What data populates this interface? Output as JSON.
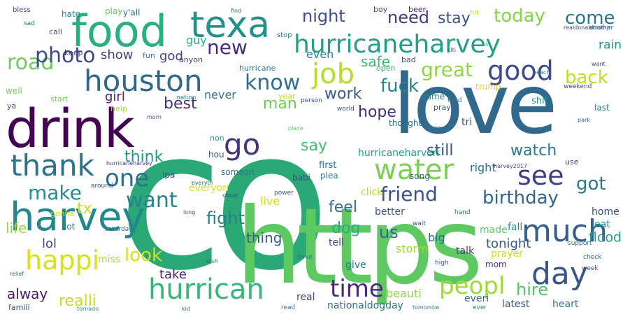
{
  "words": [
    {
      "text": "co",
      "color": "#2aa876"
    },
    {
      "text": "https",
      "color": "#5ec962"
    },
    {
      "text": "love",
      "color": "#31688e"
    },
    {
      "text": "drink",
      "color": "#440154"
    },
    {
      "text": "harvey",
      "color": "#23888e"
    },
    {
      "text": "food",
      "color": "#2ab07f"
    },
    {
      "text": "texa",
      "color": "#21918c"
    },
    {
      "text": "hurricaneharvey",
      "color": "#1fa187"
    },
    {
      "text": "houston",
      "color": "#31688e"
    },
    {
      "text": "water",
      "color": "#7ad151"
    },
    {
      "text": "thank",
      "color": "#2c728e"
    },
    {
      "text": "much",
      "color": "#355f8d"
    },
    {
      "text": "hurrican",
      "color": "#35b779"
    },
    {
      "text": "day",
      "color": "#39568c"
    },
    {
      "text": "job",
      "color": "#b5de2b"
    },
    {
      "text": "time",
      "color": "#482878"
    },
    {
      "text": "happi",
      "color": "#d8e219"
    },
    {
      "text": "good",
      "color": "#3e4a89"
    },
    {
      "text": "know",
      "color": "#2e6e8e"
    },
    {
      "text": "see",
      "color": "#433e85"
    },
    {
      "text": "peopl",
      "color": "#a0da39"
    },
    {
      "text": "friend",
      "color": "#3b528b"
    },
    {
      "text": "one",
      "color": "#2d708e"
    },
    {
      "text": "go",
      "color": "#46327e"
    },
    {
      "text": "want",
      "color": "#26828e"
    },
    {
      "text": "make",
      "color": "#218e8d"
    },
    {
      "text": "new",
      "color": "#472c7a"
    },
    {
      "text": "road",
      "color": "#6ccd5a"
    },
    {
      "text": "photo",
      "color": "#3f4889"
    },
    {
      "text": "night",
      "color": "#3d4e8a"
    },
    {
      "text": "come",
      "color": "#2c738e"
    },
    {
      "text": "today",
      "color": "#86d549"
    },
    {
      "text": "need",
      "color": "#443983"
    },
    {
      "text": "stay",
      "color": "#3a538b"
    },
    {
      "text": "great",
      "color": "#8fd744"
    },
    {
      "text": "back",
      "color": "#bddf26"
    },
    {
      "text": "work",
      "color": "#365c8d"
    },
    {
      "text": "fuck",
      "color": "#25838e"
    },
    {
      "text": "birthday",
      "color": "#31678e"
    },
    {
      "text": "got",
      "color": "#2a788e"
    },
    {
      "text": "watch",
      "color": "#2a778e"
    },
    {
      "text": "still",
      "color": "#3b528b"
    },
    {
      "text": "right",
      "color": "#2c718e"
    },
    {
      "text": "say",
      "color": "#40bd72"
    },
    {
      "text": "hope",
      "color": "#46307e"
    },
    {
      "text": "hire",
      "color": "#52c569"
    },
    {
      "text": "flood",
      "color": "#1f9e89"
    },
    {
      "text": "fight",
      "color": "#27808e"
    },
    {
      "text": "look",
      "color": "#d2e21b"
    },
    {
      "text": "tx",
      "color": "#cae11f"
    },
    {
      "text": "life",
      "color": "#95d840"
    },
    {
      "text": "lol",
      "color": "#3e4989"
    },
    {
      "text": "dog",
      "color": "#26ad81"
    },
    {
      "text": "feel",
      "color": "#2d708e"
    },
    {
      "text": "us",
      "color": "#31688e"
    },
    {
      "text": "tonight",
      "color": "#38588c"
    },
    {
      "text": "realli",
      "color": "#c2df23"
    },
    {
      "text": "take",
      "color": "#482576"
    },
    {
      "text": "alway",
      "color": "#481a6c"
    },
    {
      "text": "thing",
      "color": "#365d8d"
    },
    {
      "text": "think",
      "color": "#1e9c89"
    },
    {
      "text": "best",
      "color": "#46337f"
    },
    {
      "text": "girl",
      "color": "#482475"
    },
    {
      "text": "show",
      "color": "#424086"
    },
    {
      "text": "guy",
      "color": "#2ab07f"
    },
    {
      "text": "god",
      "color": "#414487"
    },
    {
      "text": "never",
      "color": "#2b748e"
    },
    {
      "text": "man",
      "color": "#6ece58"
    },
    {
      "text": "even",
      "color": "#25858e"
    },
    {
      "text": "safe",
      "color": "#3dbc74"
    },
    {
      "text": "rain",
      "color": "#1f978b"
    },
    {
      "text": "live",
      "color": "#d0e11c"
    },
    {
      "text": "hurricaneharveri",
      "color": "#1fa188"
    },
    {
      "text": "miss",
      "color": "#a8db34"
    },
    {
      "text": "everyon",
      "color": "#d8e219"
    },
    {
      "text": "storm",
      "color": "#9bd93c"
    },
    {
      "text": "big",
      "color": "#31688e"
    },
    {
      "text": "everi",
      "color": "#2d708e"
    },
    {
      "text": "latest",
      "color": "#3b528b"
    },
    {
      "text": "heart",
      "color": "#2a788e"
    },
    {
      "text": "nationaldogday",
      "color": "#2c728e"
    },
    {
      "text": "beauti",
      "color": "#8fd744"
    },
    {
      "text": "real",
      "color": "#404688"
    },
    {
      "text": "give",
      "color": "#2a788e"
    },
    {
      "text": "tell",
      "color": "#414487"
    },
    {
      "text": "talk",
      "color": "#443983"
    },
    {
      "text": "better",
      "color": "#3a548c"
    },
    {
      "text": "made",
      "color": "#63cb5f"
    },
    {
      "text": "fall",
      "color": "#1f958b"
    },
    {
      "text": "home",
      "color": "#3e4a89"
    },
    {
      "text": "eat",
      "color": "#21918c"
    },
    {
      "text": "prayer",
      "color": "#c8e020"
    },
    {
      "text": "mom",
      "color": "#46337f"
    },
    {
      "text": "click",
      "color": "#b8de29"
    },
    {
      "text": "song",
      "color": "#355f8d"
    },
    {
      "text": "first",
      "color": "#2a788e"
    },
    {
      "text": "plea",
      "color": "#25838e"
    },
    {
      "text": "babi",
      "color": "#3f4788"
    },
    {
      "text": "someon",
      "color": "#2d708e"
    },
    {
      "text": "hou",
      "color": "#3b528b"
    },
    {
      "text": "non",
      "color": "#22a884"
    },
    {
      "text": "lot",
      "color": "#2b748e"
    },
    {
      "text": "ipa",
      "color": "#3d4e8a"
    },
    {
      "text": "use",
      "color": "#414487"
    },
    {
      "text": "tri",
      "color": "#3e4a89"
    },
    {
      "text": "brew",
      "color": "#2c728e"
    },
    {
      "text": "game",
      "color": "#26818e"
    },
    {
      "text": "pray",
      "color": "#39568c"
    },
    {
      "text": "shit",
      "color": "#1f968b"
    },
    {
      "text": "trump",
      "color": "#dde318"
    },
    {
      "text": "thought",
      "color": "#2c728e"
    },
    {
      "text": "open",
      "color": "#36b677"
    },
    {
      "text": "hurricane",
      "color": "#2a788e"
    },
    {
      "text": "year",
      "color": "#c0df25"
    },
    {
      "text": "help",
      "color": "#9dd93b"
    },
    {
      "text": "start",
      "color": "#6ccd5a"
    },
    {
      "text": "well",
      "color": "#73d056"
    },
    {
      "text": "ya",
      "color": "#3b528b"
    },
    {
      "text": "last",
      "color": "#25838e"
    },
    {
      "text": "famili",
      "color": "#3e4a89"
    },
    {
      "text": "gonna",
      "color": "#c2df23"
    },
    {
      "text": "hate",
      "color": "#26828e"
    },
    {
      "text": "play",
      "color": "#6ece58"
    },
    {
      "text": "y'all",
      "color": "#2d708e"
    },
    {
      "text": "boy",
      "color": "#3d4e8a"
    },
    {
      "text": "beer",
      "color": "#482475"
    },
    {
      "text": "fun",
      "color": "#2a788e"
    },
    {
      "text": "call",
      "color": "#3b528b"
    },
    {
      "text": "keep",
      "color": "#443983"
    },
    {
      "text": "anyon",
      "color": "#414487"
    },
    {
      "text": "stop",
      "color": "#2c728e"
    },
    {
      "text": "bless",
      "color": "#3e4a89"
    },
    {
      "text": "sad",
      "color": "#2c728e"
    },
    {
      "text": "bad",
      "color": "#3a548c"
    },
    {
      "text": "hit",
      "color": "#c8e020"
    },
    {
      "text": "nation",
      "color": "#26828e"
    },
    {
      "text": "person",
      "color": "#3e4a89"
    },
    {
      "text": "world",
      "color": "#3b528b"
    },
    {
      "text": "hard",
      "color": "#2c728e"
    },
    {
      "text": "weekend",
      "color": "#404688"
    },
    {
      "text": "around",
      "color": "#3e4a89"
    },
    {
      "text": "saturday",
      "color": "#2d708e"
    },
    {
      "text": "another",
      "color": "#2a788e"
    },
    {
      "text": "support",
      "color": "#31688e"
    },
    {
      "text": "high",
      "color": "#3b528b"
    },
    {
      "text": "read",
      "color": "#2c728e"
    },
    {
      "text": "hand",
      "color": "#2d708e"
    },
    {
      "text": "check",
      "color": "#31688e"
    },
    {
      "text": "week",
      "color": "#3e4a89"
    },
    {
      "text": "drive",
      "color": "#2a788e"
    },
    {
      "text": "power",
      "color": "#39568c"
    },
    {
      "text": "ever",
      "color": "#26828e"
    },
    {
      "text": "wait",
      "color": "#3b528b"
    },
    {
      "text": "realdonaldtrump",
      "color": "#3e4a89"
    },
    {
      "text": "harvey2017",
      "color": "#414487"
    },
    {
      "text": "hurricaneharvey",
      "color": "#443983"
    },
    {
      "text": "everyth",
      "color": "#2c728e"
    },
    {
      "text": "shoot",
      "color": "#3e4a89"
    },
    {
      "text": "wish",
      "color": "#2d708e"
    },
    {
      "text": "long",
      "color": "#39568c"
    },
    {
      "text": "beach",
      "color": "#2a788e"
    },
    {
      "text": "park",
      "color": "#31688e"
    },
    {
      "text": "want",
      "color": "#3e4a89"
    },
    {
      "text": "citi",
      "color": "#2c728e"
    },
    {
      "text": "ok",
      "color": "#35b779"
    },
    {
      "text": "place",
      "color": "#5ec962"
    },
    {
      "text": "tornado",
      "color": "#21918c"
    },
    {
      "text": "kid",
      "color": "#2d708e"
    },
    {
      "text": "tomorrow",
      "color": "#2a788e"
    },
    {
      "text": "morn",
      "color": "#3b528b"
    },
    {
      "text": "find",
      "color": "#31688e"
    },
    {
      "text": "relief",
      "color": "#2c728e"
    }
  ]
}
